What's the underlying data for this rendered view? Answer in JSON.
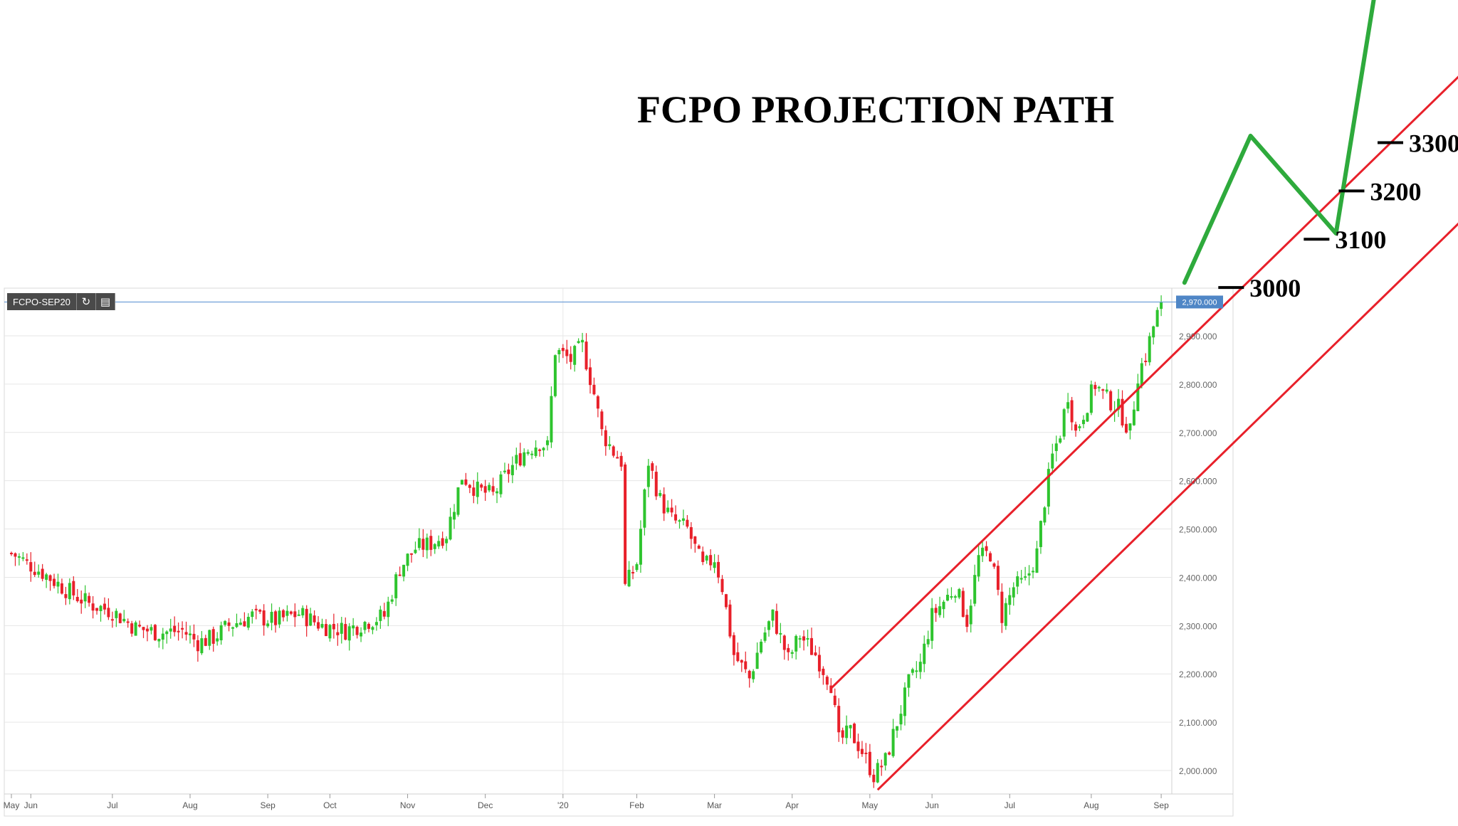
{
  "title": "FCPO PROJECTION PATH",
  "symbol": "FCPO-SEP20",
  "toolbar": {
    "refresh_icon": "refresh-icon",
    "settings_icon": "chart-settings-icon"
  },
  "last_price_label": "2,970.000",
  "colors": {
    "up": "#2ec42e",
    "down": "#e8202a",
    "channel": "#e8202a",
    "projection": "#2eaa3c",
    "last_price_line": "#6f9fd8",
    "last_price_badge": "#4f86c6",
    "grid": "#e6e6e6"
  },
  "projection_levels": [
    {
      "label": "3000",
      "value": 3000
    },
    {
      "label": "3100",
      "value": 3100
    },
    {
      "label": "3200",
      "value": 3200
    },
    {
      "label": "3300",
      "value": 3300
    }
  ],
  "chart_data": {
    "type": "candlestick",
    "title": "FCPO PROJECTION PATH",
    "symbol": "FCPO-SEP20",
    "y_ticks": [
      {
        "value": 2000,
        "label": "2,000.000"
      },
      {
        "value": 2100,
        "label": "2,100.000"
      },
      {
        "value": 2200,
        "label": "2,200.000"
      },
      {
        "value": 2300,
        "label": "2,300.000"
      },
      {
        "value": 2400,
        "label": "2,400.000"
      },
      {
        "value": 2500,
        "label": "2,500.000"
      },
      {
        "value": 2600,
        "label": "2,600.000"
      },
      {
        "value": 2700,
        "label": "2,700.000"
      },
      {
        "value": 2800,
        "label": "2,800.000"
      },
      {
        "value": 2900,
        "label": "2,900.000"
      }
    ],
    "x_ticks": [
      {
        "label": "May",
        "t": 0
      },
      {
        "label": "Jun",
        "t": 5
      },
      {
        "label": "Jul",
        "t": 26
      },
      {
        "label": "Aug",
        "t": 46
      },
      {
        "label": "Sep",
        "t": 66
      },
      {
        "label": "Oct",
        "t": 82
      },
      {
        "label": "Nov",
        "t": 102
      },
      {
        "label": "Dec",
        "t": 122
      },
      {
        "label": "'20",
        "t": 142
      },
      {
        "label": "Feb",
        "t": 161
      },
      {
        "label": "Mar",
        "t": 181
      },
      {
        "label": "Apr",
        "t": 201
      },
      {
        "label": "May",
        "t": 221
      },
      {
        "label": "Jun",
        "t": 237
      },
      {
        "label": "Jul",
        "t": 257
      },
      {
        "label": "Aug",
        "t": 278
      },
      {
        "label": "Sep",
        "t": 296
      }
    ],
    "ylim": [
      1955,
      2985
    ],
    "xlim": [
      0,
      298
    ],
    "last_price": 2970,
    "trend_path": [
      [
        0,
        2450
      ],
      [
        8,
        2410
      ],
      [
        14,
        2375
      ],
      [
        20,
        2345
      ],
      [
        26,
        2330
      ],
      [
        32,
        2295
      ],
      [
        38,
        2285
      ],
      [
        44,
        2290
      ],
      [
        48,
        2265
      ],
      [
        52,
        2275
      ],
      [
        56,
        2300
      ],
      [
        62,
        2320
      ],
      [
        68,
        2310
      ],
      [
        74,
        2325
      ],
      [
        80,
        2300
      ],
      [
        86,
        2290
      ],
      [
        92,
        2310
      ],
      [
        96,
        2320
      ],
      [
        100,
        2420
      ],
      [
        104,
        2460
      ],
      [
        108,
        2470
      ],
      [
        112,
        2490
      ],
      [
        116,
        2610
      ],
      [
        120,
        2580
      ],
      [
        124,
        2570
      ],
      [
        128,
        2620
      ],
      [
        132,
        2660
      ],
      [
        136,
        2680
      ],
      [
        138,
        2670
      ],
      [
        140,
        2870
      ],
      [
        144,
        2850
      ],
      [
        147,
        2880
      ],
      [
        150,
        2780
      ],
      [
        152,
        2700
      ],
      [
        155,
        2660
      ],
      [
        157,
        2640
      ],
      [
        158,
        2380
      ],
      [
        161,
        2430
      ],
      [
        164,
        2640
      ],
      [
        167,
        2560
      ],
      [
        170,
        2520
      ],
      [
        174,
        2500
      ],
      [
        178,
        2420
      ],
      [
        181,
        2440
      ],
      [
        183,
        2380
      ],
      [
        186,
        2240
      ],
      [
        190,
        2190
      ],
      [
        193,
        2270
      ],
      [
        196,
        2320
      ],
      [
        200,
        2230
      ],
      [
        203,
        2280
      ],
      [
        207,
        2240
      ],
      [
        211,
        2180
      ],
      [
        213,
        2060
      ],
      [
        216,
        2080
      ],
      [
        219,
        2040
      ],
      [
        222,
        1990
      ],
      [
        225,
        2020
      ],
      [
        228,
        2100
      ],
      [
        231,
        2180
      ],
      [
        234,
        2220
      ],
      [
        237,
        2320
      ],
      [
        240,
        2350
      ],
      [
        243,
        2380
      ],
      [
        246,
        2310
      ],
      [
        249,
        2440
      ],
      [
        252,
        2450
      ],
      [
        255,
        2320
      ],
      [
        258,
        2380
      ],
      [
        261,
        2390
      ],
      [
        264,
        2450
      ],
      [
        266,
        2560
      ],
      [
        268,
        2650
      ],
      [
        270,
        2700
      ],
      [
        272,
        2780
      ],
      [
        274,
        2700
      ],
      [
        276,
        2740
      ],
      [
        279,
        2800
      ],
      [
        282,
        2770
      ],
      [
        285,
        2750
      ],
      [
        288,
        2700
      ],
      [
        290,
        2820
      ],
      [
        292,
        2860
      ],
      [
        294,
        2920
      ],
      [
        296,
        2970
      ]
    ],
    "channel_lines": [
      {
        "name": "upper",
        "from": [
          211,
          2170
        ],
        "to": [
          380,
          3495
        ]
      },
      {
        "name": "lower",
        "from": [
          223,
          1960
        ],
        "to": [
          392,
          3285
        ]
      }
    ],
    "projection_path": [
      [
        302,
        3010
      ],
      [
        319,
        3314
      ],
      [
        341,
        3112
      ],
      [
        351,
        3610
      ]
    ]
  }
}
